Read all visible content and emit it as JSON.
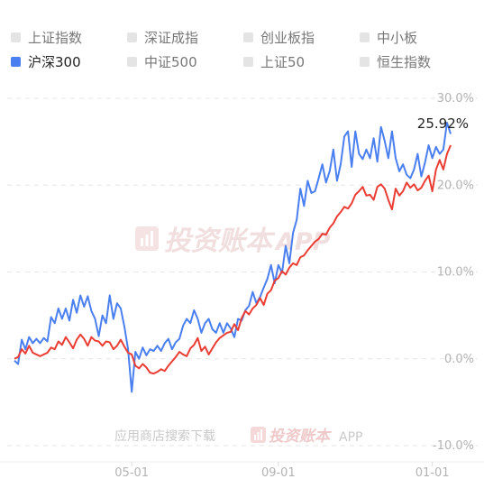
{
  "legend": {
    "items": [
      {
        "label": "上证指数",
        "active": false
      },
      {
        "label": "深证成指",
        "active": false
      },
      {
        "label": "创业板指",
        "active": false
      },
      {
        "label": "中小板",
        "active": false
      },
      {
        "label": "沪深300",
        "active": true
      },
      {
        "label": "中证500",
        "active": false
      },
      {
        "label": "上证50",
        "active": false
      },
      {
        "label": "恒生指数",
        "active": false
      }
    ]
  },
  "watermark": {
    "brand": "投资账本",
    "suffix": "APP",
    "store_text": "应用商店搜索下载"
  },
  "colors": {
    "portfolio": "#ea3d34",
    "benchmark": "#4a7ff0",
    "grid": "#e6e6e6",
    "watermark": "#f1dede"
  },
  "chart_data": {
    "type": "line",
    "yticks": [
      "30.0%",
      "20.0%",
      "10.0%",
      "0.0%",
      "-10.0%"
    ],
    "ytick_values": [
      30,
      20,
      10,
      0,
      -10
    ],
    "ylim": [
      -10,
      30
    ],
    "xticks": [
      "05-01",
      "09-01",
      "01-01"
    ],
    "xtick_positions": [
      32,
      72,
      114
    ],
    "x_range": [
      0,
      119
    ],
    "last_value_label": "25.92%",
    "series": [
      {
        "name": "",
        "color": "#4a7ff0",
        "values": [
          -0.2,
          -0.6,
          2.2,
          1.1,
          2.5,
          1.8,
          2.3,
          1.8,
          2.4,
          2.0,
          4.8,
          4.1,
          5.8,
          4.6,
          5.8,
          4.4,
          6.8,
          5.3,
          7.3,
          6.0,
          7.2,
          5.5,
          4.6,
          2.6,
          5.0,
          4.1,
          7.3,
          4.6,
          6.4,
          5.8,
          3.7,
          1.1,
          -3.8,
          0.8,
          0.0,
          1.3,
          0.4,
          1.1,
          0.9,
          1.5,
          0.9,
          1.8,
          2.3,
          1.1,
          1.9,
          2.3,
          3.8,
          4.6,
          4.1,
          5.6,
          4.6,
          3.0,
          4.1,
          4.6,
          3.4,
          3.0,
          4.1,
          3.0,
          4.1,
          3.5,
          2.5,
          4.6,
          4.4,
          5.6,
          6.1,
          7.7,
          6.4,
          7.1,
          8.2,
          9.2,
          10.8,
          8.7,
          10.8,
          9.9,
          13.0,
          11.0,
          14.5,
          16.0,
          19.6,
          17.6,
          20.5,
          19.1,
          19.3,
          20.8,
          22.4,
          20.3,
          21.6,
          24.1,
          20.5,
          22.4,
          25.6,
          26.2,
          22.1,
          26.2,
          23.6,
          23.0,
          24.1,
          23.1,
          25.4,
          22.7,
          26.7,
          25.1,
          23.1,
          26.2,
          23.1,
          21.6,
          22.4,
          21.2,
          20.8,
          21.8,
          23.6,
          21.0,
          22.6,
          24.6,
          23.1,
          24.4,
          23.6,
          24.1,
          27.2,
          25.9
        ]
      },
      {
        "name": "",
        "color": "#ea3d34",
        "values": [
          0.0,
          0.2,
          1.1,
          0.6,
          1.5,
          0.7,
          0.5,
          0.3,
          0.5,
          0.7,
          1.3,
          1.1,
          2.0,
          1.6,
          2.5,
          1.9,
          1.2,
          2.2,
          2.8,
          2.3,
          1.5,
          2.5,
          2.1,
          2.0,
          1.5,
          2.0,
          1.9,
          1.1,
          1.5,
          2.2,
          1.4,
          0.7,
          0.5,
          -0.8,
          -1.1,
          -0.6,
          -1.0,
          -1.6,
          -1.7,
          -1.5,
          -1.2,
          -1.4,
          -0.8,
          -0.3,
          0.2,
          0.8,
          0.5,
          0.3,
          1.2,
          1.6,
          2.4,
          0.9,
          1.4,
          0.5,
          1.2,
          1.9,
          2.4,
          2.7,
          3.0,
          3.1,
          4.0,
          3.3,
          4.7,
          5.5,
          5.1,
          5.8,
          6.2,
          7.0,
          6.2,
          7.5,
          7.9,
          9.0,
          9.3,
          10.1,
          9.7,
          10.5,
          11.0,
          10.8,
          11.7,
          11.9,
          12.5,
          13.0,
          13.5,
          13.8,
          14.4,
          14.3,
          15.1,
          15.6,
          16.4,
          16.9,
          17.5,
          17.3,
          17.9,
          18.9,
          19.3,
          19.8,
          18.8,
          18.9,
          18.3,
          19.8,
          20.1,
          19.6,
          18.3,
          17.2,
          19.6,
          18.8,
          19.3,
          20.3,
          19.7,
          20.1,
          19.4,
          19.7,
          20.5,
          21.1,
          19.3,
          21.8,
          22.9,
          21.8,
          23.6,
          24.6
        ]
      }
    ]
  }
}
